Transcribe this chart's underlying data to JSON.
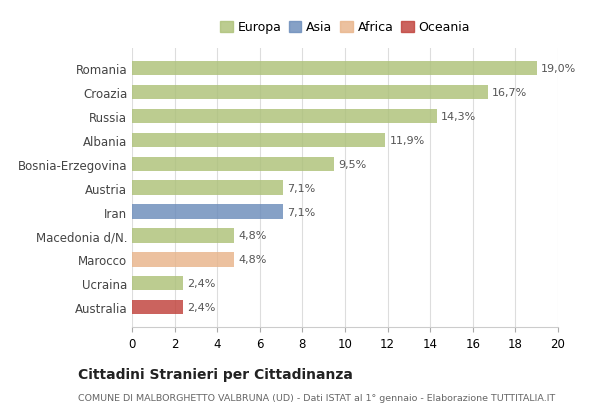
{
  "categories": [
    "Romania",
    "Croazia",
    "Russia",
    "Albania",
    "Bosnia-Erzegovina",
    "Austria",
    "Iran",
    "Macedonia d/N.",
    "Marocco",
    "Ucraina",
    "Australia"
  ],
  "values": [
    19.0,
    16.7,
    14.3,
    11.9,
    9.5,
    7.1,
    7.1,
    4.8,
    4.8,
    2.4,
    2.4
  ],
  "labels": [
    "19,0%",
    "16,7%",
    "14,3%",
    "11,9%",
    "9,5%",
    "7,1%",
    "7,1%",
    "4,8%",
    "4,8%",
    "2,4%",
    "2,4%"
  ],
  "bar_colors": [
    "#adc178",
    "#adc178",
    "#adc178",
    "#adc178",
    "#adc178",
    "#adc178",
    "#6b8cba",
    "#adc178",
    "#e8b48a",
    "#adc178",
    "#c0413a"
  ],
  "legend_labels": [
    "Europa",
    "Asia",
    "Africa",
    "Oceania"
  ],
  "legend_colors": [
    "#adc178",
    "#6b8cba",
    "#e8b48a",
    "#c0413a"
  ],
  "title": "Cittadini Stranieri per Cittadinanza",
  "subtitle": "COMUNE DI MALBORGHETTO VALBRUNA (UD) - Dati ISTAT al 1° gennaio - Elaborazione TUTTITALIA.IT",
  "xlim": [
    0,
    20
  ],
  "xticks": [
    0,
    2,
    4,
    6,
    8,
    10,
    12,
    14,
    16,
    18,
    20
  ],
  "background_color": "#ffffff",
  "grid_color": "#dddddd",
  "bar_alpha": 0.82
}
